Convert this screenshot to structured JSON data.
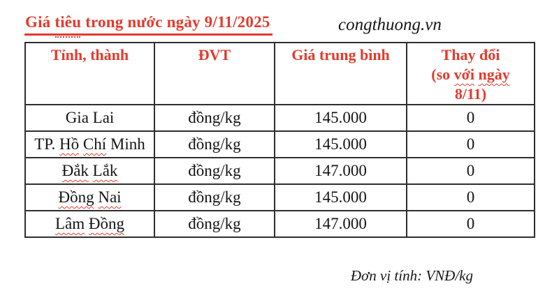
{
  "header": {
    "title_parts": [
      {
        "text": "Giá ",
        "dotted": false
      },
      {
        "text": "tiêu",
        "dotted": true
      },
      {
        "text": " trong nước ngày 9/11/2025",
        "dotted": false
      }
    ],
    "watermark": "congthuong.vn"
  },
  "table": {
    "headers": [
      {
        "lines": [
          [
            {
              "text": "Tỉnh, thành",
              "wavy": false
            }
          ]
        ]
      },
      {
        "lines": [
          [
            {
              "text": "ĐVT",
              "wavy": false
            }
          ]
        ]
      },
      {
        "lines": [
          [
            {
              "text": "Giá trung bình",
              "wavy": false
            }
          ]
        ]
      },
      {
        "lines": [
          [
            {
              "text": "Thay đổi",
              "wavy": false
            }
          ],
          [
            {
              "text": "(so ",
              "wavy": false
            },
            {
              "text": "với",
              "wavy": true
            },
            {
              "text": " ",
              "wavy": false
            },
            {
              "text": "ngày",
              "wavy": true
            }
          ],
          [
            {
              "text": "8/11)",
              "wavy": false
            }
          ]
        ]
      }
    ],
    "rows": [
      {
        "province": [
          {
            "text": "Gia Lai",
            "wavy": false
          }
        ],
        "unit": "đồng/kg",
        "price": "145.000",
        "change": "0"
      },
      {
        "province": [
          {
            "text": "TP. ",
            "wavy": false
          },
          {
            "text": "Hồ",
            "wavy": true
          },
          {
            "text": " ",
            "wavy": false
          },
          {
            "text": "Chí",
            "wavy": true
          },
          {
            "text": " Minh",
            "wavy": false
          }
        ],
        "unit": "đồng/kg",
        "price": "145.000",
        "change": "0"
      },
      {
        "province": [
          {
            "text": "Đắk",
            "wavy": true
          },
          {
            "text": " ",
            "wavy": false
          },
          {
            "text": "Lắk",
            "wavy": true
          }
        ],
        "unit": "đồng/kg",
        "price": "147.000",
        "change": "0"
      },
      {
        "province": [
          {
            "text": "Đồng",
            "wavy": true
          },
          {
            "text": " ",
            "wavy": false
          },
          {
            "text": "Nai",
            "wavy": true
          }
        ],
        "unit": "đồng/kg",
        "price": "145.000",
        "change": "0"
      },
      {
        "province": [
          {
            "text": "Lâm",
            "wavy": true
          },
          {
            "text": " ",
            "wavy": false
          },
          {
            "text": "Đồng",
            "wavy": true
          }
        ],
        "unit": "đồng/kg",
        "price": "147.000",
        "change": "0"
      }
    ]
  },
  "footer": {
    "unit_note": "Đơn vị tính: VNĐ/kg"
  },
  "colors": {
    "accent_red": "#e23b2e",
    "change_blue": "#5b9bd5",
    "text_ink": "#141414",
    "border": "#2e2e2e",
    "background": "#ffffff"
  }
}
